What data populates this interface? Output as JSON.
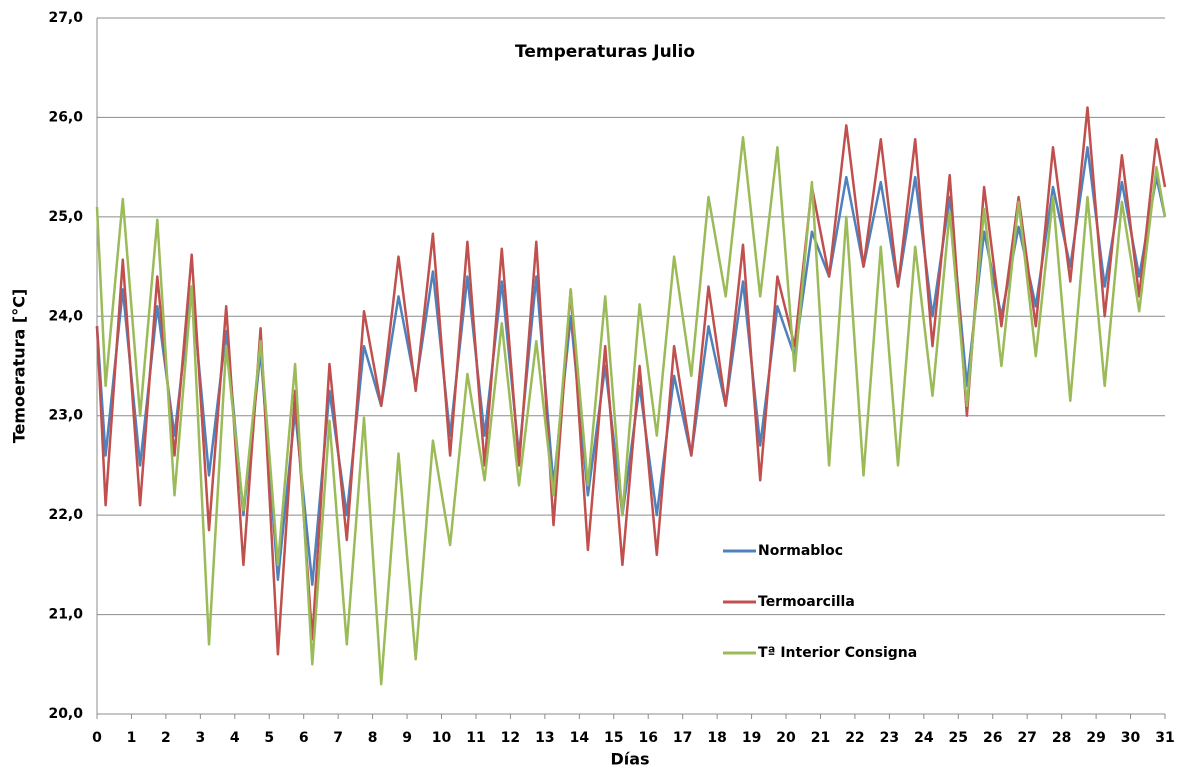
{
  "chart_data": {
    "type": "line",
    "title": "Temperaturas Julio",
    "x_label": "Días",
    "y_label": "Temoeratura [°C]",
    "x": [
      0,
      0.25,
      0.75,
      1.25,
      1.75,
      2.25,
      2.75,
      3.25,
      3.75,
      4.25,
      4.75,
      5.25,
      5.75,
      6.25,
      6.75,
      7.25,
      7.75,
      8.25,
      8.75,
      9.25,
      9.75,
      10.25,
      10.75,
      11.25,
      11.75,
      12.25,
      12.75,
      13.25,
      13.75,
      14.25,
      14.75,
      15.25,
      15.75,
      16.25,
      16.75,
      17.25,
      17.75,
      18.25,
      18.75,
      19.25,
      19.75,
      20.25,
      20.75,
      21.25,
      21.75,
      22.25,
      22.75,
      23.25,
      23.75,
      24.25,
      24.75,
      25.25,
      25.75,
      26.25,
      26.75,
      27.25,
      27.75,
      28.25,
      28.75,
      29.25,
      29.75,
      30.25,
      30.75,
      31
    ],
    "series": [
      {
        "name": "Normabloc",
        "color": "#4f81bd",
        "values": [
          23.9,
          22.6,
          24.27,
          22.5,
          24.1,
          22.8,
          24.3,
          22.4,
          23.85,
          22.0,
          23.65,
          21.35,
          23.05,
          21.3,
          23.25,
          22.0,
          23.7,
          23.1,
          24.2,
          23.3,
          24.45,
          22.8,
          24.4,
          22.8,
          24.35,
          22.6,
          24.4,
          22.3,
          24.0,
          22.2,
          23.5,
          22.0,
          23.3,
          22.0,
          23.4,
          22.6,
          23.9,
          23.1,
          24.35,
          22.7,
          24.1,
          23.6,
          24.85,
          24.4,
          25.4,
          24.5,
          25.35,
          24.3,
          25.4,
          24.0,
          25.2,
          23.3,
          24.85,
          24.0,
          24.9,
          24.1,
          25.3,
          24.5,
          25.7,
          24.3,
          25.35,
          24.4,
          25.4,
          25.0
        ]
      },
      {
        "name": "Termoarcilla",
        "color": "#c0504d",
        "values": [
          23.9,
          22.1,
          24.57,
          22.1,
          24.4,
          22.6,
          24.62,
          21.85,
          24.1,
          21.5,
          23.88,
          20.6,
          23.25,
          20.75,
          23.52,
          21.75,
          24.05,
          23.1,
          24.6,
          23.25,
          24.83,
          22.6,
          24.75,
          22.5,
          24.68,
          22.5,
          24.75,
          21.9,
          24.27,
          21.65,
          23.7,
          21.5,
          23.5,
          21.6,
          23.7,
          22.6,
          24.3,
          23.1,
          24.72,
          22.35,
          24.4,
          23.7,
          25.3,
          24.4,
          25.92,
          24.5,
          25.78,
          24.3,
          25.78,
          23.7,
          25.42,
          23.0,
          25.3,
          23.9,
          25.2,
          23.9,
          25.7,
          24.35,
          26.1,
          24.0,
          25.62,
          24.2,
          25.78,
          25.3
        ]
      },
      {
        "name": "Tª Interior Consigna",
        "color": "#9bbb59",
        "values": [
          25.1,
          23.3,
          25.18,
          23.0,
          24.97,
          22.2,
          24.3,
          20.7,
          23.7,
          22.05,
          23.75,
          21.5,
          23.52,
          20.5,
          22.95,
          20.7,
          22.98,
          20.3,
          22.62,
          20.55,
          22.75,
          21.7,
          23.42,
          22.35,
          23.93,
          22.3,
          23.75,
          22.2,
          24.27,
          22.3,
          24.2,
          22.0,
          24.12,
          22.8,
          24.6,
          23.4,
          25.2,
          24.2,
          25.8,
          24.2,
          25.7,
          23.45,
          25.35,
          22.5,
          25.0,
          22.4,
          24.7,
          22.5,
          24.7,
          23.2,
          25.05,
          23.1,
          25.08,
          23.5,
          25.15,
          23.6,
          25.2,
          23.15,
          25.2,
          23.3,
          25.15,
          24.05,
          25.5,
          25.0
        ]
      }
    ],
    "xlim": [
      0,
      31
    ],
    "xticks": [
      0,
      1,
      2,
      3,
      4,
      5,
      6,
      7,
      8,
      9,
      10,
      11,
      12,
      13,
      14,
      15,
      16,
      17,
      18,
      19,
      20,
      21,
      22,
      23,
      24,
      25,
      26,
      27,
      28,
      29,
      30,
      31
    ],
    "ylim": [
      20,
      27
    ],
    "yticks": [
      {
        "value": 20,
        "label": "20,0"
      },
      {
        "value": 21,
        "label": "21,0"
      },
      {
        "value": 22,
        "label": "22,0"
      },
      {
        "value": 23,
        "label": "23,0"
      },
      {
        "value": 24,
        "label": "24,0"
      },
      {
        "value": 25,
        "label": "25,0"
      },
      {
        "value": 26,
        "label": "26,0"
      },
      {
        "value": 27,
        "label": "27,0"
      }
    ],
    "grid": true
  }
}
